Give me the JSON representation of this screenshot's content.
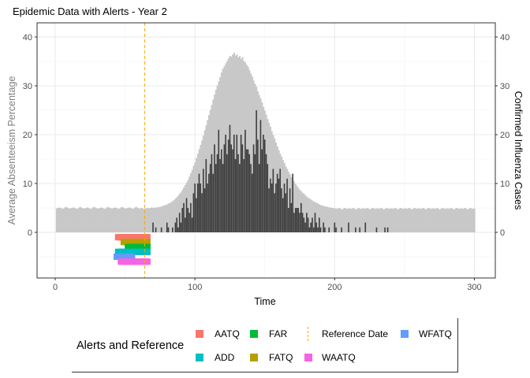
{
  "chart_data": {
    "type": "bar",
    "title": "Epidemic Data with Alerts - Year 2",
    "xlabel": "Time",
    "ylabel": "Average Absenteeism Percentage",
    "ylabel_right": "Confirmed Influenza Cases",
    "xlim": [
      -13,
      315
    ],
    "ylim": [
      -9.35,
      42.9
    ],
    "x_ticks": [
      0,
      100,
      200,
      300
    ],
    "y_ticks": [
      0,
      10,
      20,
      30,
      40
    ],
    "y_ticks_right": [
      0,
      10,
      20,
      30,
      40
    ],
    "grid": true,
    "legend_placement": "bottom",
    "absenteeism": {
      "color": "#C8C8C8",
      "first_day": 1,
      "values": [
        4.9,
        5.0,
        5.1,
        5.0,
        4.8,
        4.9,
        5.1,
        5.2,
        5.0,
        4.9,
        4.9,
        5.0,
        5.1,
        5.0,
        4.8,
        4.9,
        5.1,
        5.2,
        5.0,
        4.9,
        4.9,
        5.0,
        5.1,
        5.0,
        4.8,
        4.9,
        5.1,
        5.2,
        5.0,
        4.9,
        4.9,
        5.0,
        5.1,
        5.0,
        4.8,
        4.9,
        5.1,
        5.2,
        5.0,
        4.9,
        4.9,
        5.0,
        5.1,
        5.0,
        4.8,
        4.9,
        5.1,
        5.2,
        5.0,
        4.9,
        4.9,
        5.0,
        5.1,
        5.0,
        4.8,
        4.9,
        5.1,
        5.2,
        5.0,
        4.9,
        4.9,
        5.0,
        4.8,
        4.9,
        4.9,
        5.0,
        4.9,
        5.0,
        5.1,
        5.0,
        5.0,
        5.1,
        5.1,
        5.2,
        5.2,
        5.3,
        5.4,
        5.5,
        5.6,
        5.7,
        5.9,
        6.0,
        6.2,
        6.4,
        6.6,
        6.9,
        7.2,
        7.5,
        7.9,
        8.2,
        8.7,
        9.2,
        9.7,
        10.2,
        10.7,
        11.4,
        12.1,
        12.8,
        13.6,
        14.3,
        15.2,
        16.1,
        17.0,
        17.9,
        18.8,
        19.8,
        20.9,
        21.9,
        23.0,
        24.0,
        25.1,
        26.1,
        27.2,
        28.2,
        29.2,
        30.1,
        30.9,
        31.8,
        32.7,
        33.5,
        34.0,
        34.6,
        35.1,
        35.6,
        36.1,
        36.0,
        36.4,
        36.8,
        36.2,
        36.4,
        35.8,
        36.1,
        35.5,
        35.9,
        35.1,
        34.8,
        34.3,
        33.9,
        33.2,
        32.5,
        31.9,
        31.1,
        30.4,
        29.8,
        28.9,
        28.1,
        27.4,
        26.6,
        25.7,
        24.9,
        24.1,
        23.2,
        22.4,
        21.6,
        20.7,
        19.9,
        19.2,
        18.4,
        17.6,
        16.8,
        16.1,
        15.5,
        14.8,
        14.2,
        13.5,
        13.0,
        12.4,
        11.9,
        11.3,
        10.8,
        10.4,
        9.9,
        9.5,
        9.1,
        8.7,
        8.4,
        8.1,
        7.9,
        7.6,
        7.3,
        7.1,
        6.9,
        6.7,
        6.5,
        6.3,
        6.2,
        6.0,
        5.9,
        5.7,
        5.6,
        5.5,
        5.4,
        5.3,
        5.3,
        5.2,
        5.1,
        5.1,
        5.0,
        5.0,
        4.9,
        4.9,
        4.8,
        5.0,
        4.9,
        4.7,
        4.8,
        5.0,
        4.9,
        4.8,
        4.9,
        4.9,
        4.8,
        5.0,
        4.9,
        4.7,
        4.8,
        5.0,
        4.9,
        4.8,
        4.9,
        4.9,
        4.8,
        5.0,
        4.9,
        4.7,
        4.8,
        5.0,
        4.9,
        4.8,
        4.9,
        4.9,
        4.8,
        5.0,
        4.9,
        4.7,
        4.8,
        5.0,
        4.9,
        4.8,
        4.9,
        4.9,
        4.8,
        5.0,
        4.9,
        4.7,
        4.8,
        5.0,
        4.9,
        4.8,
        4.9,
        4.9,
        4.8,
        5.0,
        4.9,
        4.7,
        4.8,
        5.0,
        4.9,
        4.8,
        4.9,
        4.9,
        4.8,
        5.0,
        4.9,
        4.7,
        4.8,
        5.0,
        4.9,
        4.8,
        4.9,
        4.9,
        4.8,
        5.0,
        4.9,
        4.7,
        4.8,
        5.0,
        4.9,
        4.8,
        4.9,
        4.9,
        4.8,
        5.0,
        4.9,
        4.7,
        4.8,
        5.0,
        4.9,
        4.8,
        4.9,
        4.9,
        4.8,
        5.0,
        4.9,
        4.7,
        4.8,
        5.0,
        4.9,
        4.8,
        4.9
      ]
    },
    "cases": {
      "color": "#3D3D3D",
      "points": [
        [
          70,
          2
        ],
        [
          72,
          1
        ],
        [
          76,
          1
        ],
        [
          80,
          2
        ],
        [
          81,
          1
        ],
        [
          84,
          1
        ],
        [
          86,
          2
        ],
        [
          87,
          3
        ],
        [
          88,
          1
        ],
        [
          89,
          4
        ],
        [
          90,
          2
        ],
        [
          91,
          5
        ],
        [
          92,
          6
        ],
        [
          93,
          3
        ],
        [
          94,
          7
        ],
        [
          95,
          5
        ],
        [
          96,
          4
        ],
        [
          97,
          6
        ],
        [
          98,
          3
        ],
        [
          99,
          8
        ],
        [
          100,
          10
        ],
        [
          101,
          7
        ],
        [
          102,
          10
        ],
        [
          103,
          12
        ],
        [
          104,
          10
        ],
        [
          105,
          8
        ],
        [
          106,
          13
        ],
        [
          107,
          9
        ],
        [
          108,
          15
        ],
        [
          109,
          10
        ],
        [
          110,
          12
        ],
        [
          111,
          14
        ],
        [
          112,
          16
        ],
        [
          113,
          12
        ],
        [
          114,
          18
        ],
        [
          115,
          14
        ],
        [
          116,
          16
        ],
        [
          117,
          21
        ],
        [
          118,
          15
        ],
        [
          119,
          17
        ],
        [
          120,
          14
        ],
        [
          121,
          18
        ],
        [
          122,
          20
        ],
        [
          123,
          16
        ],
        [
          124,
          19
        ],
        [
          125,
          22
        ],
        [
          126,
          18
        ],
        [
          127,
          17
        ],
        [
          128,
          20
        ],
        [
          129,
          15
        ],
        [
          130,
          20
        ],
        [
          131,
          16
        ],
        [
          132,
          14
        ],
        [
          133,
          20
        ],
        [
          134,
          18
        ],
        [
          135,
          15
        ],
        [
          136,
          21
        ],
        [
          137,
          17
        ],
        [
          138,
          17
        ],
        [
          139,
          16
        ],
        [
          140,
          14
        ],
        [
          141,
          12
        ],
        [
          142,
          18
        ],
        [
          143,
          16
        ],
        [
          144,
          25
        ],
        [
          145,
          19
        ],
        [
          146,
          14
        ],
        [
          147,
          23
        ],
        [
          148,
          17
        ],
        [
          149,
          20
        ],
        [
          150,
          19
        ],
        [
          151,
          16
        ],
        [
          152,
          14
        ],
        [
          153,
          9
        ],
        [
          154,
          11
        ],
        [
          155,
          10
        ],
        [
          156,
          13
        ],
        [
          157,
          8
        ],
        [
          158,
          10
        ],
        [
          159,
          12
        ],
        [
          160,
          11
        ],
        [
          161,
          13
        ],
        [
          162,
          9
        ],
        [
          163,
          7
        ],
        [
          164,
          10
        ],
        [
          165,
          8
        ],
        [
          166,
          11
        ],
        [
          167,
          5
        ],
        [
          168,
          9
        ],
        [
          169,
          6
        ],
        [
          170,
          12
        ],
        [
          171,
          4
        ],
        [
          172,
          5
        ],
        [
          173,
          5
        ],
        [
          174,
          5
        ],
        [
          175,
          4
        ],
        [
          176,
          6
        ],
        [
          177,
          4
        ],
        [
          178,
          3
        ],
        [
          179,
          2
        ],
        [
          180,
          4
        ],
        [
          181,
          3
        ],
        [
          182,
          1
        ],
        [
          183,
          2
        ],
        [
          184,
          3
        ],
        [
          185,
          1
        ],
        [
          186,
          4
        ],
        [
          187,
          2
        ],
        [
          188,
          1
        ],
        [
          189,
          3
        ],
        [
          190,
          1
        ],
        [
          192,
          2
        ],
        [
          193,
          1
        ],
        [
          196,
          1
        ],
        [
          200,
          2
        ],
        [
          201,
          1
        ],
        [
          205,
          1
        ],
        [
          210,
          2
        ],
        [
          215,
          1
        ],
        [
          218,
          1
        ],
        [
          222,
          2
        ],
        [
          230,
          1
        ],
        [
          236,
          1
        ],
        [
          238,
          1
        ]
      ]
    },
    "reference_date": {
      "label": "Reference Date",
      "x": 64,
      "color": "#FFA500"
    },
    "alerts": [
      {
        "name": "AATQ",
        "color": "#F8766D",
        "level": -1,
        "from": 45,
        "to": 66
      },
      {
        "name": "FATQ",
        "color": "#B79F00",
        "level": -2,
        "from": 49,
        "to": 66
      },
      {
        "name": "FAR",
        "color": "#00BA38",
        "level": -3,
        "from": 52,
        "to": 66
      },
      {
        "name": "ADD",
        "color": "#00BFC4",
        "level": -4,
        "from": 45,
        "to": 66
      },
      {
        "name": "WFATQ",
        "color": "#619CFF",
        "level": -5,
        "from": 44,
        "to": 55
      },
      {
        "name": "WAATQ",
        "color": "#F564E3",
        "level": -6,
        "from": 47,
        "to": 66
      }
    ],
    "legend": {
      "title": "Alerts and Reference",
      "row1": [
        "AATQ",
        "FAR",
        "Reference Date",
        "WFATQ"
      ],
      "row2": [
        "ADD",
        "FATQ",
        "WAATQ"
      ]
    }
  }
}
